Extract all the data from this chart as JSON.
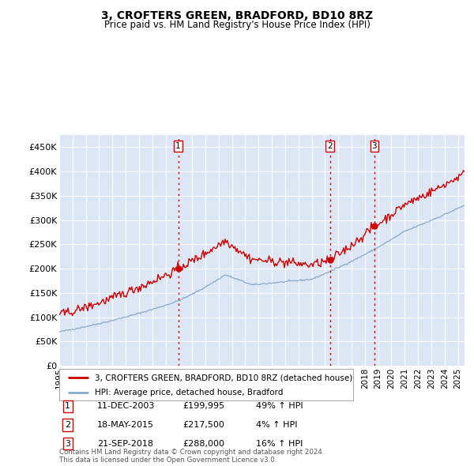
{
  "title": "3, CROFTERS GREEN, BRADFORD, BD10 8RZ",
  "subtitle": "Price paid vs. HM Land Registry's House Price Index (HPI)",
  "ylabel_ticks": [
    "£0",
    "£50K",
    "£100K",
    "£150K",
    "£200K",
    "£250K",
    "£300K",
    "£350K",
    "£400K",
    "£450K"
  ],
  "ytick_values": [
    0,
    50000,
    100000,
    150000,
    200000,
    250000,
    300000,
    350000,
    400000,
    450000
  ],
  "ylim": [
    0,
    475000
  ],
  "xlim_start": 1995.0,
  "xlim_end": 2025.5,
  "sale_dates": [
    2003.95,
    2015.38,
    2018.72
  ],
  "sale_prices": [
    199995,
    217500,
    288000
  ],
  "sale_labels": [
    "1",
    "2",
    "3"
  ],
  "sale_date_strs": [
    "11-DEC-2003",
    "18-MAY-2015",
    "21-SEP-2018"
  ],
  "sale_price_strs": [
    "£199,995",
    "£217,500",
    "£288,000"
  ],
  "sale_hpi_strs": [
    "49% ↑ HPI",
    "4% ↑ HPI",
    "16% ↑ HPI"
  ],
  "vline_color": "#cc0000",
  "dot_color": "#cc0000",
  "legend_line1": "3, CROFTERS GREEN, BRADFORD, BD10 8RZ (detached house)",
  "legend_line2": "HPI: Average price, detached house, Bradford",
  "footer": "Contains HM Land Registry data © Crown copyright and database right 2024.\nThis data is licensed under the Open Government Licence v3.0.",
  "table_rows": [
    [
      "1",
      "11-DEC-2003",
      "£199,995",
      "49% ↑ HPI"
    ],
    [
      "2",
      "18-MAY-2015",
      "£217,500",
      "4% ↑ HPI"
    ],
    [
      "3",
      "21-SEP-2018",
      "£288,000",
      "16% ↑ HPI"
    ]
  ],
  "background_color": "#ffffff",
  "plot_bg_color": "#dce6f5",
  "grid_color": "#ffffff",
  "red_line_color": "#cc0000",
  "blue_line_color": "#88aacc"
}
